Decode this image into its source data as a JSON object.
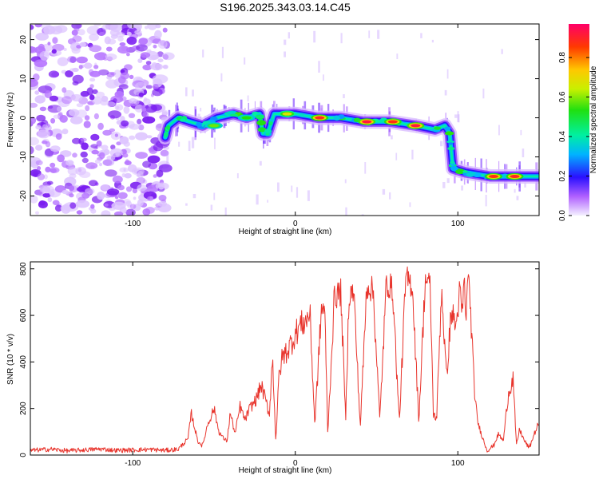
{
  "title": "S196.2025.343.03.14.C45",
  "chart_data": [
    {
      "type": "heatmap",
      "name": "spectrogram",
      "xlabel": "Height of straight line (km)",
      "ylabel": "Frequency (Hz)",
      "xlim": [
        -163,
        150
      ],
      "ylim": [
        -25,
        24
      ],
      "xticks": [
        -100,
        0,
        100
      ],
      "yticks": [
        -20,
        -10,
        0,
        10,
        20
      ],
      "colorbar": {
        "label": "Normalized spectral amplitude",
        "range": [
          0,
          0.97
        ],
        "ticks": [
          0.0,
          0.2,
          0.4,
          0.6,
          0.8
        ]
      },
      "noise_region_x": [
        -163,
        -80
      ],
      "ridge": [
        {
          "x": -80,
          "y": -5
        },
        {
          "x": -78,
          "y": -2
        },
        {
          "x": -72,
          "y": 0
        },
        {
          "x": -65,
          "y": -1
        },
        {
          "x": -57,
          "y": -2
        },
        {
          "x": -48,
          "y": 0
        },
        {
          "x": -38,
          "y": 1
        },
        {
          "x": -30,
          "y": 0
        },
        {
          "x": -22,
          "y": 1
        },
        {
          "x": -20,
          "y": -4
        },
        {
          "x": -17,
          "y": -4
        },
        {
          "x": -13,
          "y": 1
        },
        {
          "x": 0,
          "y": 1
        },
        {
          "x": 14,
          "y": 0
        },
        {
          "x": 28,
          "y": 0
        },
        {
          "x": 42,
          "y": -1
        },
        {
          "x": 58,
          "y": -1
        },
        {
          "x": 74,
          "y": -2
        },
        {
          "x": 86,
          "y": -3
        },
        {
          "x": 92,
          "y": -2
        },
        {
          "x": 95,
          "y": -4
        },
        {
          "x": 97,
          "y": -13
        },
        {
          "x": 105,
          "y": -14
        },
        {
          "x": 120,
          "y": -15
        },
        {
          "x": 150,
          "y": -15
        }
      ],
      "peaks": [
        {
          "x": -50,
          "y": -2,
          "amplitude": 0.6
        },
        {
          "x": -30,
          "y": 0,
          "amplitude": 0.55
        },
        {
          "x": -5,
          "y": 1,
          "amplitude": 0.7
        },
        {
          "x": 15,
          "y": 0,
          "amplitude": 0.92
        },
        {
          "x": 44,
          "y": -1,
          "amplitude": 0.95
        },
        {
          "x": 60,
          "y": -1,
          "amplitude": 0.9
        },
        {
          "x": 74,
          "y": -2,
          "amplitude": 0.95
        },
        {
          "x": 122,
          "y": -15,
          "amplitude": 0.9
        },
        {
          "x": 135,
          "y": -15,
          "amplitude": 0.92
        }
      ]
    },
    {
      "type": "line",
      "name": "snr",
      "xlabel": "Height of straight line (km)",
      "ylabel": "SNR (10 * v/v)",
      "xlim": [
        -163,
        150
      ],
      "ylim": [
        0,
        830
      ],
      "xticks": [
        -100,
        0,
        100
      ],
      "yticks": [
        0,
        200,
        400,
        600,
        800
      ],
      "color": "#e8342c",
      "series": [
        {
          "name": "SNR",
          "x": [
            -163,
            -150,
            -140,
            -130,
            -120,
            -110,
            -100,
            -90,
            -80,
            -72,
            -66,
            -64,
            -62,
            -60,
            -57,
            -54,
            -50,
            -47,
            -44,
            -42,
            -40,
            -37,
            -34,
            -31,
            -28,
            -24,
            -21,
            -18,
            -16,
            -14,
            -12,
            -10,
            -8,
            -4,
            0,
            3,
            6,
            9,
            12,
            16,
            18,
            20,
            24,
            28,
            31,
            33,
            36,
            40,
            44,
            46,
            48,
            52,
            56,
            58,
            60,
            64,
            68,
            70,
            72,
            76,
            80,
            83,
            85,
            87,
            90,
            93,
            96,
            99,
            101,
            103,
            104,
            105,
            106,
            108,
            110,
            112,
            114,
            118,
            122,
            125,
            128,
            131,
            134,
            136,
            138,
            141,
            144,
            147,
            150
          ],
          "y": [
            20,
            25,
            18,
            22,
            26,
            20,
            22,
            24,
            20,
            25,
            70,
            180,
            120,
            60,
            40,
            130,
            200,
            100,
            70,
            60,
            180,
            90,
            210,
            150,
            200,
            240,
            300,
            230,
            170,
            420,
            60,
            340,
            420,
            460,
            520,
            560,
            570,
            610,
            130,
            620,
            640,
            90,
            680,
            700,
            150,
            690,
            700,
            120,
            730,
            720,
            700,
            150,
            740,
            730,
            700,
            140,
            760,
            745,
            730,
            150,
            760,
            720,
            170,
            160,
            720,
            330,
            620,
            550,
            700,
            600,
            800,
            500,
            820,
            600,
            300,
            150,
            100,
            20,
            40,
            90,
            60,
            260,
            330,
            40,
            110,
            60,
            30,
            90,
            140
          ]
        }
      ]
    }
  ]
}
